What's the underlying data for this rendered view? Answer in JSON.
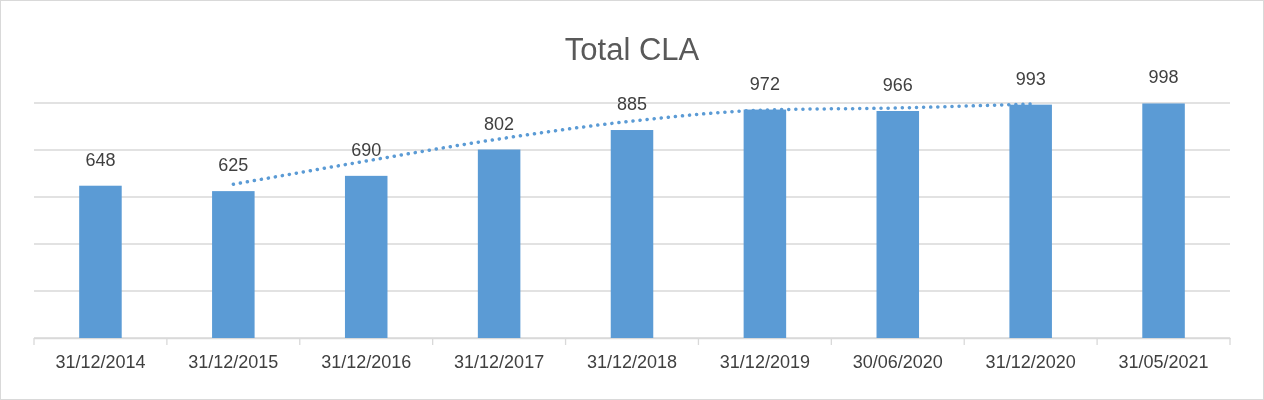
{
  "chart_data": {
    "type": "bar",
    "title": "Total CLA",
    "categories": [
      "31/12/2014",
      "31/12/2015",
      "31/12/2016",
      "31/12/2017",
      "31/12/2018",
      "31/12/2019",
      "30/06/2020",
      "31/12/2020",
      "31/05/2021"
    ],
    "series": [
      {
        "color": "#5b9bd5",
        "values": [
          648,
          625,
          690,
          802,
          885,
          972,
          966,
          993,
          998
        ],
        "data_labels": true
      },
      {
        "type": "line",
        "color": "#5b9bd5",
        "line_style": "dotted",
        "marker": "none",
        "values": [
          null,
          654,
          753,
          847,
          923,
          970,
          979,
          996,
          null
        ]
      }
    ],
    "ylim": [
      0,
      1000
    ],
    "yticks": [
      {
        "value": 0,
        "label": null
      },
      {
        "value": 200,
        "label": null
      },
      {
        "value": 400,
        "label": null
      },
      {
        "value": 600,
        "label": null
      },
      {
        "value": 800,
        "label": null
      },
      {
        "value": 1000,
        "label": null
      }
    ],
    "grid": "y",
    "tick_labels": "x"
  }
}
